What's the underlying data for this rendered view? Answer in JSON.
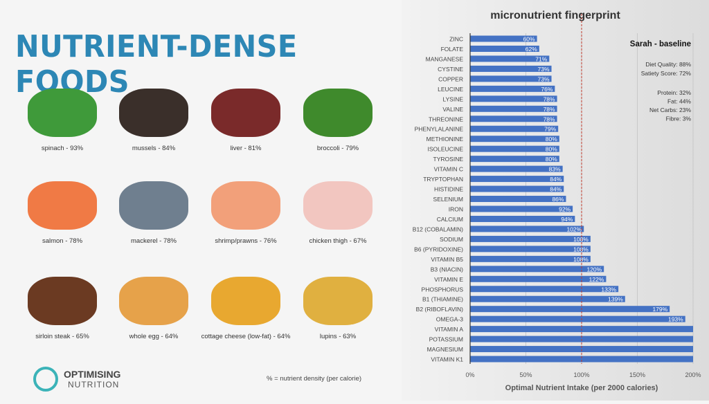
{
  "left": {
    "title": "NUTRIENT-DENSE FOODS",
    "foods": [
      {
        "label": "spinach - 93%",
        "color": "#3f9a3a"
      },
      {
        "label": "mussels - 84%",
        "color": "#3a2f2a"
      },
      {
        "label": "liver - 81%",
        "color": "#7a2a2a"
      },
      {
        "label": "broccoli - 79%",
        "color": "#3f8a2c"
      },
      {
        "label": "salmon - 78%",
        "color": "#f07a45"
      },
      {
        "label": "mackerel - 78%",
        "color": "#6f7f8f"
      },
      {
        "label": "shrimp/prawns - 76%",
        "color": "#f2a07a"
      },
      {
        "label": "chicken thigh - 67%",
        "color": "#f2c6c0"
      },
      {
        "label": "sirloin steak - 65%",
        "color": "#6b3a22"
      },
      {
        "label": "whole egg - 64%",
        "color": "#e6a24a"
      },
      {
        "label": "cottage cheese (low-fat) - 64%",
        "color": "#e8a830"
      },
      {
        "label": "lupins - 63%",
        "color": "#e0b040"
      }
    ],
    "logo_line1": "OPTIMISING",
    "logo_line2": "NUTRITION",
    "note": "% = nutrient density (per calorie)"
  },
  "chart_data": {
    "type": "bar",
    "orientation": "horizontal",
    "title": "micronutrient fingerprint",
    "xlabel": "Optimal Nutrient Intake (per 2000 calories)",
    "xlim": [
      0,
      200
    ],
    "xticks": [
      "0%",
      "50%",
      "100%",
      "150%",
      "200%"
    ],
    "reference_line": 100,
    "bar_color": "#4472c4",
    "grid": true,
    "categories": [
      "ZINC",
      "FOLATE",
      "MANGANESE",
      "CYSTINE",
      "COPPER",
      "LEUCINE",
      "LYSINE",
      "VALINE",
      "THREONINE",
      "PHENYLALANINE",
      "METHIONINE",
      "ISOLEUCINE",
      "TYROSINE",
      "VITAMIN C",
      "TRYPTOPHAN",
      "HISTIDINE",
      "SELENIUM",
      "IRON",
      "CALCIUM",
      "B12 (COBALAMIN)",
      "SODIUM",
      "B6 (PYRIDOXINE)",
      "VITAMIN B5",
      "B3 (NIACIN)",
      "VITAMIN E",
      "PHOSPHORUS",
      "B1 (THIAMINE)",
      "B2 (RIBOFLAVIN)",
      "OMEGA-3",
      "VITAMIN A",
      "POTASSIUM",
      "MAGNESIUM",
      "VITAMIN K1"
    ],
    "values": [
      60,
      62,
      71,
      73,
      73,
      76,
      78,
      78,
      78,
      79,
      80,
      80,
      80,
      83,
      84,
      84,
      86,
      92,
      94,
      102,
      108,
      108,
      108,
      120,
      122,
      133,
      139,
      179,
      193,
      200,
      200,
      200,
      200
    ],
    "labels": [
      "60%",
      "62%",
      "71%",
      "73%",
      "73%",
      "76%",
      "78%",
      "78%",
      "78%",
      "79%",
      "80%",
      "80%",
      "80%",
      "83%",
      "84%",
      "84%",
      "86%",
      "92%",
      "94%",
      "102%",
      "108%",
      "108%",
      "108%",
      "120%",
      "122%",
      "133%",
      "139%",
      "179%",
      "193%",
      "",
      "",
      "",
      ""
    ],
    "legend": {
      "name": "Sarah - baseline",
      "stats": [
        "Diet Quality: 88%",
        "Satiety Score: 72%"
      ],
      "macros": [
        "Protein: 32%",
        "Fat: 44%",
        "Net Carbs: 23%",
        "Fibre: 3%"
      ]
    }
  }
}
